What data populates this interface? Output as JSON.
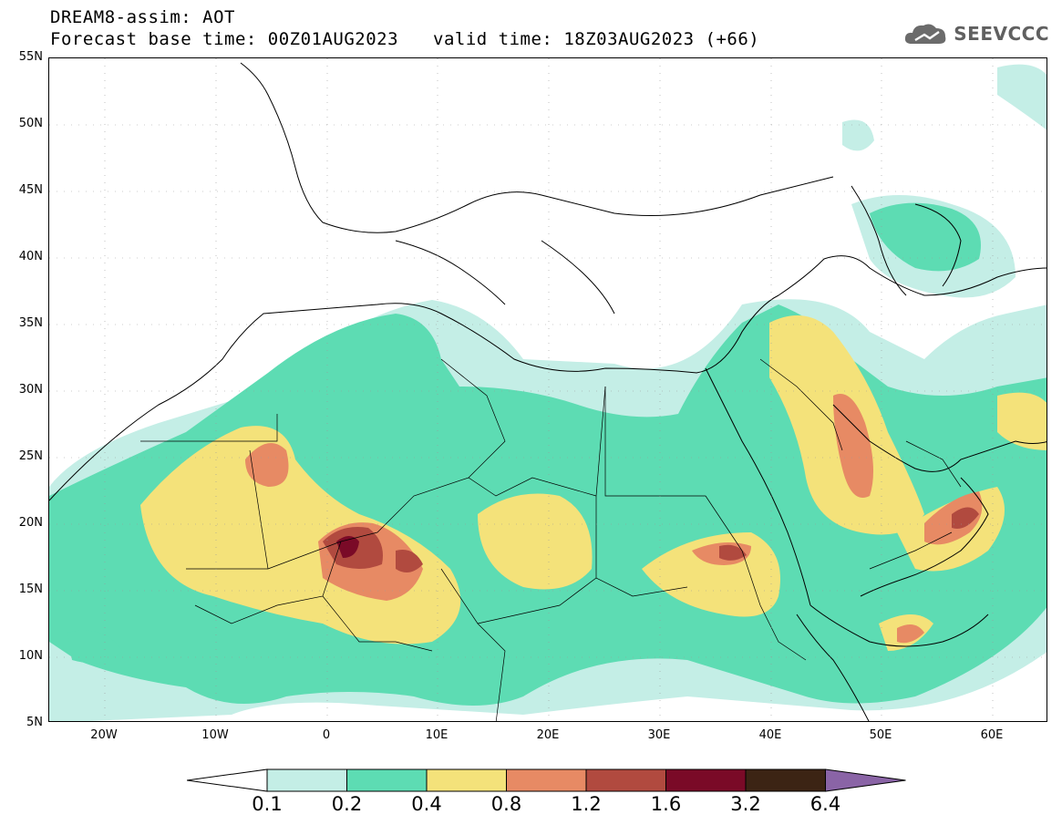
{
  "header": {
    "title_line1": "DREAM8-assim: AOT",
    "base_time": "Forecast base time: 00Z01AUG2023",
    "valid_time": "valid time: 18Z03AUG2023 (+66)",
    "logo_text": "SEEVCCC"
  },
  "map": {
    "lat_labels": [
      "55N",
      "50N",
      "45N",
      "40N",
      "35N",
      "30N",
      "25N",
      "20N",
      "15N",
      "10N",
      "5N"
    ],
    "lon_labels": [
      "20W",
      "10W",
      "0",
      "10E",
      "20E",
      "30E",
      "40E",
      "50E",
      "60E"
    ],
    "lat_range": [
      5,
      55
    ],
    "lon_range": [
      -25,
      65
    ]
  },
  "colorbar": {
    "levels": [
      "0.1",
      "0.2",
      "0.4",
      "0.8",
      "1.2",
      "1.6",
      "3.2",
      "6.4"
    ],
    "colors": [
      "#ffffff",
      "#c4eee6",
      "#5ddcb3",
      "#f4e27a",
      "#e78a64",
      "#b14a3f",
      "#7a0a27",
      "#3c2414",
      "#8a64a6"
    ]
  }
}
